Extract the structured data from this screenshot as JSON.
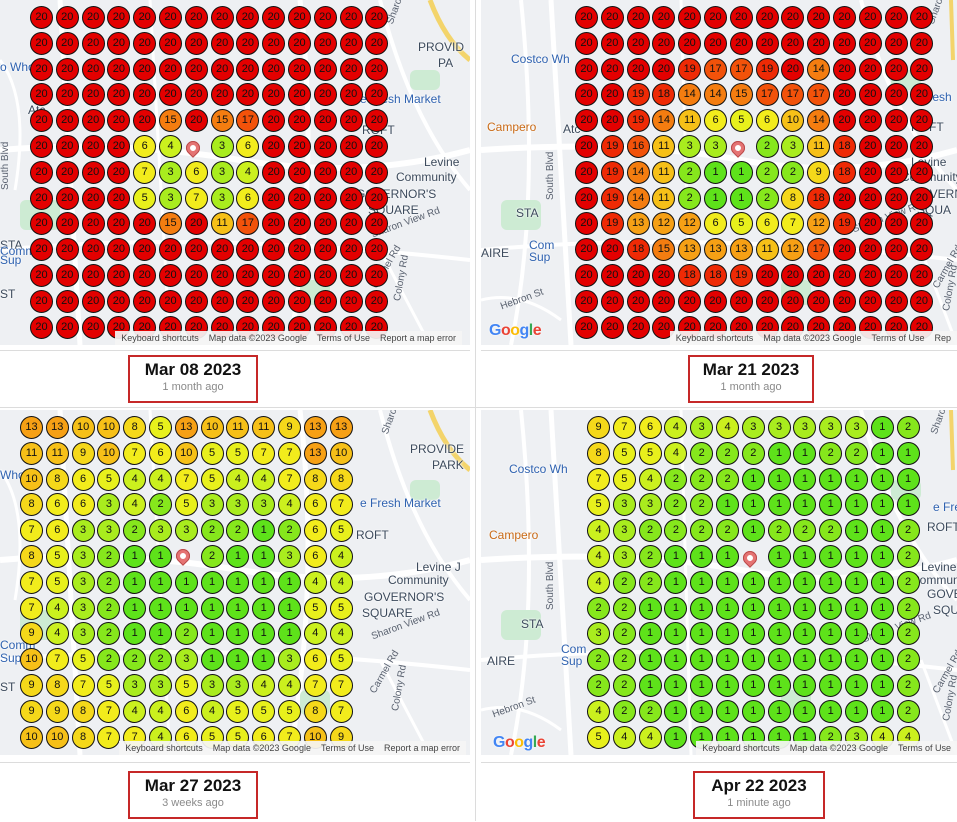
{
  "panels": [
    {
      "date": "Mar 08 2023",
      "ago": "1 month ago",
      "footer": [
        "Keyboard shortcuts",
        "Map data ©2023 Google",
        "Terms of Use",
        "Report a map error"
      ],
      "labels": [
        "Sharon Ln",
        "PROVID",
        "PA",
        "o Whole",
        "e Fresh Market",
        "ROFT",
        "Levine",
        "Community",
        "GOVERNOR'S",
        "SQUARE",
        "Sharon View Rd",
        "STA",
        "Comm",
        "Sup",
        "ST",
        "Carmel Rd",
        "Colony Rd",
        "Atc",
        "South Blvd"
      ],
      "grid": [
        [
          20,
          20,
          20,
          20,
          20,
          20,
          20,
          20,
          20,
          20,
          20,
          20,
          20,
          20
        ],
        [
          20,
          20,
          20,
          20,
          20,
          20,
          20,
          20,
          20,
          20,
          20,
          20,
          20,
          20
        ],
        [
          20,
          20,
          20,
          20,
          20,
          20,
          20,
          20,
          20,
          20,
          20,
          20,
          20,
          20
        ],
        [
          20,
          20,
          20,
          20,
          20,
          20,
          20,
          20,
          20,
          20,
          20,
          20,
          20,
          20
        ],
        [
          20,
          20,
          20,
          20,
          20,
          15,
          20,
          15,
          17,
          20,
          20,
          20,
          20,
          20
        ],
        [
          20,
          20,
          20,
          20,
          6,
          4,
          null,
          3,
          6,
          20,
          20,
          20,
          20,
          20
        ],
        [
          20,
          20,
          20,
          20,
          7,
          3,
          6,
          3,
          4,
          20,
          20,
          20,
          20,
          20
        ],
        [
          20,
          20,
          20,
          20,
          5,
          3,
          7,
          3,
          6,
          20,
          20,
          20,
          20,
          20
        ],
        [
          20,
          20,
          20,
          20,
          20,
          15,
          20,
          11,
          17,
          20,
          20,
          20,
          20,
          20
        ],
        [
          20,
          20,
          20,
          20,
          20,
          20,
          20,
          20,
          20,
          20,
          20,
          20,
          20,
          20
        ],
        [
          20,
          20,
          20,
          20,
          20,
          20,
          20,
          20,
          20,
          20,
          20,
          20,
          20,
          20
        ],
        [
          20,
          20,
          20,
          20,
          20,
          20,
          20,
          20,
          20,
          20,
          20,
          20,
          20,
          20
        ],
        [
          20,
          20,
          20,
          20,
          20,
          20,
          20,
          20,
          20,
          20,
          20,
          20,
          20,
          20
        ]
      ]
    },
    {
      "date": "Mar 21 2023",
      "ago": "1 month ago",
      "footer": [
        "Keyboard shortcuts",
        "Map data ©2023 Google",
        "Terms of Use",
        "Rep"
      ],
      "labels": [
        "Sharon Ln",
        "Costco Wh",
        "Campero",
        "e Fresh",
        "ROFT",
        "Levine",
        "Community",
        "GOVERN",
        "SQUA",
        "Sharon View Rd",
        "STA",
        "Com",
        "Sup",
        "AIRE",
        "Hebron St",
        "Carmel Rd",
        "Colony Rd",
        "Atc",
        "South Blvd"
      ],
      "grid": [
        [
          20,
          20,
          20,
          20,
          20,
          20,
          20,
          20,
          20,
          20,
          20,
          20,
          20,
          20
        ],
        [
          20,
          20,
          20,
          20,
          20,
          20,
          20,
          20,
          20,
          20,
          20,
          20,
          20,
          20
        ],
        [
          20,
          20,
          20,
          20,
          19,
          17,
          17,
          19,
          20,
          14,
          20,
          20,
          20,
          20
        ],
        [
          20,
          20,
          19,
          18,
          14,
          14,
          15,
          17,
          17,
          17,
          20,
          20,
          20,
          20
        ],
        [
          20,
          20,
          19,
          14,
          11,
          6,
          5,
          6,
          10,
          14,
          20,
          20,
          20,
          20
        ],
        [
          20,
          19,
          16,
          11,
          3,
          3,
          null,
          2,
          3,
          11,
          18,
          20,
          20,
          20
        ],
        [
          20,
          19,
          14,
          11,
          2,
          1,
          1,
          2,
          2,
          9,
          18,
          20,
          20,
          20
        ],
        [
          20,
          19,
          14,
          11,
          2,
          1,
          1,
          2,
          8,
          18,
          20,
          20,
          20,
          20
        ],
        [
          20,
          19,
          13,
          12,
          12,
          6,
          5,
          6,
          7,
          12,
          19,
          20,
          20,
          20
        ],
        [
          20,
          20,
          18,
          15,
          13,
          13,
          13,
          11,
          12,
          17,
          20,
          20,
          20,
          20
        ],
        [
          20,
          20,
          20,
          20,
          18,
          18,
          19,
          20,
          20,
          20,
          20,
          20,
          20,
          20
        ],
        [
          20,
          20,
          20,
          20,
          20,
          20,
          20,
          20,
          20,
          20,
          20,
          20,
          20,
          20
        ],
        [
          20,
          20,
          20,
          20,
          20,
          20,
          20,
          20,
          20,
          20,
          20,
          20,
          20,
          20
        ]
      ]
    },
    {
      "date": "Mar 27 2023",
      "ago": "3 weeks ago",
      "footer": [
        "Keyboard shortcuts",
        "Map data ©2023 Google",
        "Terms of Use",
        "Report a map error"
      ],
      "labels": [
        "Sharon Ln",
        "PROVIDE",
        "PARK",
        "Whole",
        "e Fresh Market",
        "ROFT",
        "Levine J",
        "Community",
        "GOVERNOR'S",
        "SQUARE",
        "Sharon View Rd",
        "Comm",
        "Sup",
        "ST",
        "Carmel Rd",
        "Colony Rd"
      ],
      "grid": [
        [
          13,
          13,
          10,
          10,
          8,
          5,
          13,
          10,
          11,
          11,
          9,
          13,
          13
        ],
        [
          11,
          11,
          9,
          10,
          7,
          6,
          10,
          5,
          5,
          7,
          7,
          13,
          10
        ],
        [
          10,
          8,
          6,
          5,
          4,
          4,
          7,
          5,
          4,
          4,
          7,
          8,
          8
        ],
        [
          8,
          6,
          6,
          3,
          4,
          2,
          5,
          3,
          3,
          3,
          4,
          6,
          7
        ],
        [
          7,
          6,
          3,
          3,
          2,
          3,
          3,
          2,
          2,
          1,
          2,
          6,
          5
        ],
        [
          8,
          5,
          3,
          2,
          1,
          1,
          null,
          2,
          1,
          1,
          3,
          6,
          4
        ],
        [
          7,
          5,
          3,
          2,
          1,
          1,
          1,
          1,
          1,
          1,
          1,
          4,
          4
        ],
        [
          7,
          4,
          3,
          2,
          1,
          1,
          1,
          1,
          1,
          1,
          1,
          5,
          5
        ],
        [
          9,
          4,
          3,
          2,
          1,
          1,
          2,
          1,
          1,
          1,
          1,
          4,
          4
        ],
        [
          10,
          7,
          5,
          2,
          2,
          2,
          3,
          1,
          1,
          1,
          3,
          6,
          5
        ],
        [
          9,
          8,
          7,
          5,
          3,
          3,
          5,
          3,
          3,
          4,
          4,
          7,
          7
        ],
        [
          9,
          9,
          8,
          7,
          4,
          4,
          6,
          4,
          5,
          5,
          5,
          8,
          7
        ],
        [
          10,
          10,
          8,
          7,
          7,
          4,
          6,
          5,
          5,
          6,
          7,
          10,
          9
        ]
      ]
    },
    {
      "date": "Apr 22 2023",
      "ago": "1 minute ago",
      "footer": [
        "Keyboard shortcuts",
        "Map data ©2023 Google",
        "Terms of Use"
      ],
      "labels": [
        "Sharon Ln",
        "Costco Wh",
        "Campero",
        "e Fre",
        "ROFT",
        "Levine",
        "Community",
        "GOVERN",
        "SQUA",
        "Sharon View Rd",
        "STA",
        "Com",
        "Sup",
        "AIRE",
        "Hebron St",
        "Carmel Rd",
        "Colony Rd",
        "South Blvd"
      ],
      "grid": [
        [
          9,
          7,
          6,
          4,
          3,
          4,
          3,
          3,
          3,
          3,
          3,
          1,
          2
        ],
        [
          8,
          5,
          5,
          4,
          2,
          2,
          2,
          1,
          1,
          2,
          2,
          1,
          1
        ],
        [
          7,
          5,
          4,
          2,
          2,
          2,
          1,
          1,
          1,
          1,
          1,
          1,
          1
        ],
        [
          5,
          3,
          3,
          2,
          2,
          1,
          1,
          1,
          1,
          1,
          1,
          1,
          1
        ],
        [
          4,
          3,
          2,
          2,
          2,
          2,
          1,
          2,
          2,
          2,
          1,
          1,
          2
        ],
        [
          4,
          3,
          2,
          1,
          1,
          1,
          null,
          1,
          1,
          1,
          1,
          1,
          2
        ],
        [
          4,
          2,
          2,
          1,
          1,
          1,
          1,
          1,
          1,
          1,
          1,
          1,
          2
        ],
        [
          2,
          2,
          1,
          1,
          1,
          1,
          1,
          1,
          1,
          1,
          1,
          1,
          2
        ],
        [
          3,
          2,
          1,
          1,
          1,
          1,
          1,
          1,
          1,
          1,
          1,
          1,
          2
        ],
        [
          2,
          2,
          1,
          1,
          1,
          1,
          1,
          1,
          1,
          1,
          1,
          1,
          2
        ],
        [
          2,
          2,
          1,
          1,
          1,
          1,
          1,
          1,
          1,
          1,
          1,
          1,
          2
        ],
        [
          4,
          2,
          2,
          1,
          1,
          1,
          1,
          1,
          1,
          1,
          1,
          1,
          2
        ],
        [
          5,
          4,
          4,
          1,
          1,
          1,
          1,
          1,
          1,
          2,
          3,
          4,
          4
        ]
      ]
    }
  ],
  "colors": {
    "rank_20": "#e00000",
    "rank_high": "#f47d10",
    "rank_mid": "#f2e21a",
    "rank_low": "#b7ef1e",
    "rank_1": "#5ee21a",
    "caption_border": "#c62828"
  }
}
